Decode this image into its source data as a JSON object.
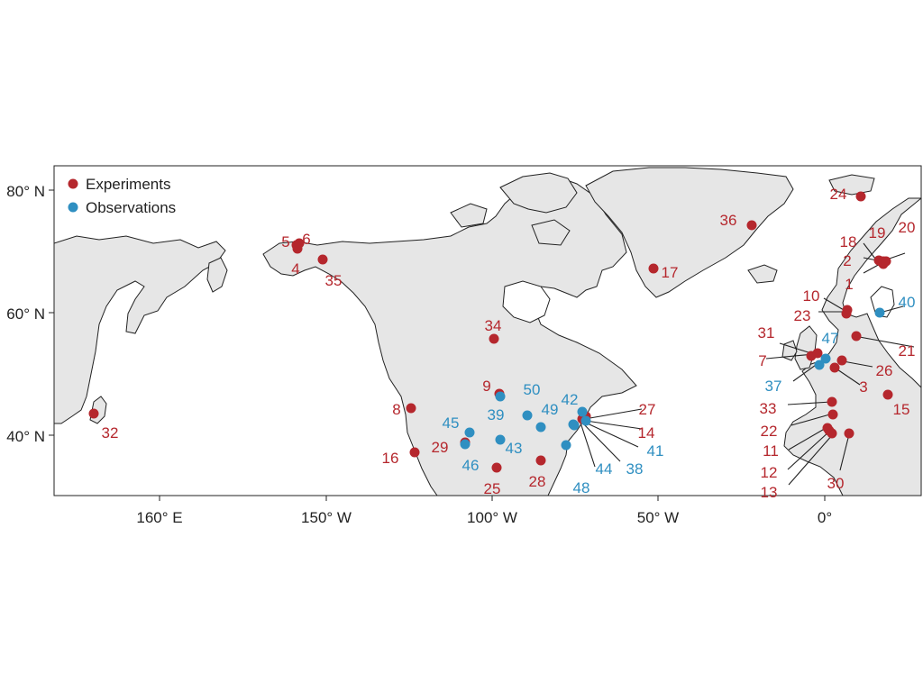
{
  "legend": {
    "experiments_label": "Experiments",
    "observations_label": "Observations"
  },
  "colors": {
    "experiments": "#b5272d",
    "observations": "#2f8fc1",
    "land": "#e6e6e6",
    "coast": "#222222"
  },
  "axes": {
    "y_ticks": [
      "80° N",
      "60° N",
      "40° N"
    ],
    "x_ticks": [
      "160° E",
      "150° W",
      "100° W",
      "50° W",
      "0°"
    ]
  },
  "sites": [
    {
      "label": "1",
      "type": "experiments"
    },
    {
      "label": "2",
      "type": "experiments"
    },
    {
      "label": "3",
      "type": "experiments"
    },
    {
      "label": "4",
      "type": "experiments"
    },
    {
      "label": "5",
      "type": "experiments"
    },
    {
      "label": "6",
      "type": "experiments"
    },
    {
      "label": "7",
      "type": "experiments"
    },
    {
      "label": "8",
      "type": "experiments"
    },
    {
      "label": "9",
      "type": "experiments"
    },
    {
      "label": "10",
      "type": "experiments"
    },
    {
      "label": "11",
      "type": "experiments"
    },
    {
      "label": "12",
      "type": "experiments"
    },
    {
      "label": "13",
      "type": "experiments"
    },
    {
      "label": "14",
      "type": "experiments"
    },
    {
      "label": "15",
      "type": "experiments"
    },
    {
      "label": "16",
      "type": "experiments"
    },
    {
      "label": "17",
      "type": "experiments"
    },
    {
      "label": "18",
      "type": "experiments"
    },
    {
      "label": "19",
      "type": "experiments"
    },
    {
      "label": "20",
      "type": "experiments"
    },
    {
      "label": "21",
      "type": "experiments"
    },
    {
      "label": "22",
      "type": "experiments"
    },
    {
      "label": "23",
      "type": "experiments"
    },
    {
      "label": "24",
      "type": "experiments"
    },
    {
      "label": "25",
      "type": "experiments"
    },
    {
      "label": "26",
      "type": "experiments"
    },
    {
      "label": "27",
      "type": "experiments"
    },
    {
      "label": "28",
      "type": "experiments"
    },
    {
      "label": "29",
      "type": "experiments"
    },
    {
      "label": "30",
      "type": "experiments"
    },
    {
      "label": "31",
      "type": "experiments"
    },
    {
      "label": "32",
      "type": "experiments"
    },
    {
      "label": "33",
      "type": "experiments"
    },
    {
      "label": "34",
      "type": "experiments"
    },
    {
      "label": "35",
      "type": "experiments"
    },
    {
      "label": "36",
      "type": "experiments"
    },
    {
      "label": "37",
      "type": "observations"
    },
    {
      "label": "38",
      "type": "observations"
    },
    {
      "label": "39",
      "type": "observations"
    },
    {
      "label": "40",
      "type": "observations"
    },
    {
      "label": "41",
      "type": "observations"
    },
    {
      "label": "42",
      "type": "observations"
    },
    {
      "label": "43",
      "type": "observations"
    },
    {
      "label": "44",
      "type": "observations"
    },
    {
      "label": "45",
      "type": "observations"
    },
    {
      "label": "46",
      "type": "observations"
    },
    {
      "label": "47",
      "type": "observations"
    },
    {
      "label": "48",
      "type": "observations"
    },
    {
      "label": "49",
      "type": "observations"
    },
    {
      "label": "50",
      "type": "observations"
    }
  ]
}
